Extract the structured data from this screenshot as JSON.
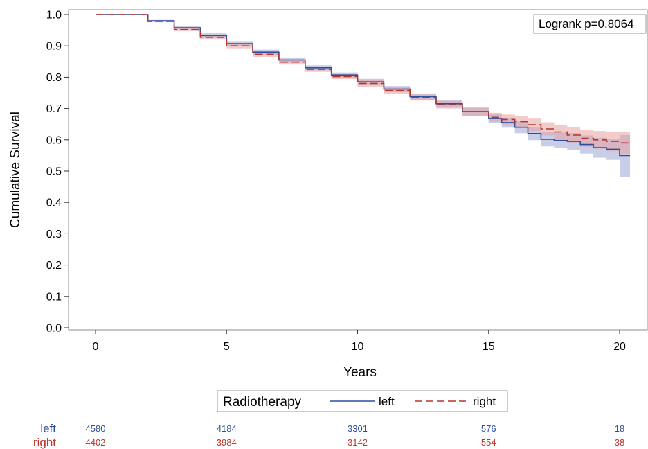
{
  "chart_data": {
    "type": "line",
    "subtype": "kaplan-meier",
    "ylabel": "Cumulative Survival",
    "xlabel": "Years",
    "ylim": [
      0,
      1.0
    ],
    "xlim": [
      -1,
      20.5
    ],
    "yticks": [
      0.0,
      0.1,
      0.2,
      0.3,
      0.4,
      0.5,
      0.6,
      0.7,
      0.8,
      0.9,
      1.0
    ],
    "ytick_labels": [
      "0.0",
      "0.1",
      "0.2",
      "0.3",
      "0.4",
      "0.5",
      "0.6",
      "0.7",
      "0.8",
      "0.9",
      "1.0"
    ],
    "xticks": [
      0,
      5,
      10,
      15,
      20
    ],
    "xtick_labels": [
      "0",
      "5",
      "10",
      "15",
      "20"
    ],
    "annotation": "Logrank p=0.8064",
    "legend": {
      "title": "Radiotherapy",
      "placement": "bottom-center",
      "entries": [
        "left",
        "right"
      ]
    },
    "series": [
      {
        "name": "left",
        "color": "#2e4f9e",
        "band_color": "#9aa6d6",
        "line_style": "solid",
        "points": [
          [
            0,
            1.0
          ],
          [
            1,
            1.0
          ],
          [
            2,
            0.98
          ],
          [
            3,
            0.958
          ],
          [
            4,
            0.933
          ],
          [
            5,
            0.907
          ],
          [
            6,
            0.88
          ],
          [
            7,
            0.855
          ],
          [
            8,
            0.83
          ],
          [
            9,
            0.807
          ],
          [
            10,
            0.785
          ],
          [
            11,
            0.762
          ],
          [
            12,
            0.738
          ],
          [
            13,
            0.715
          ],
          [
            14,
            0.69
          ],
          [
            15,
            0.668
          ],
          [
            15.5,
            0.655
          ],
          [
            16,
            0.64
          ],
          [
            16.5,
            0.62
          ],
          [
            17,
            0.602
          ],
          [
            17.5,
            0.598
          ],
          [
            18,
            0.595
          ],
          [
            18.5,
            0.585
          ],
          [
            19,
            0.575
          ],
          [
            19.5,
            0.57
          ],
          [
            20,
            0.55
          ],
          [
            20.4,
            0.55
          ]
        ],
        "ci_upper": [
          [
            0,
            1.0
          ],
          [
            1,
            1.0
          ],
          [
            2,
            0.983
          ],
          [
            3,
            0.963
          ],
          [
            4,
            0.94
          ],
          [
            5,
            0.915
          ],
          [
            6,
            0.888
          ],
          [
            7,
            0.863
          ],
          [
            8,
            0.838
          ],
          [
            9,
            0.815
          ],
          [
            10,
            0.795
          ],
          [
            11,
            0.772
          ],
          [
            12,
            0.748
          ],
          [
            13,
            0.727
          ],
          [
            14,
            0.703
          ],
          [
            15,
            0.682
          ],
          [
            15.5,
            0.671
          ],
          [
            16,
            0.659
          ],
          [
            16.5,
            0.641
          ],
          [
            17,
            0.625
          ],
          [
            17.5,
            0.623
          ],
          [
            18,
            0.622
          ],
          [
            18.5,
            0.614
          ],
          [
            19,
            0.607
          ],
          [
            19.5,
            0.604
          ],
          [
            20,
            0.615
          ],
          [
            20.4,
            0.615
          ]
        ],
        "ci_lower": [
          [
            0,
            1.0
          ],
          [
            1,
            1.0
          ],
          [
            2,
            0.977
          ],
          [
            3,
            0.953
          ],
          [
            4,
            0.926
          ],
          [
            5,
            0.899
          ],
          [
            6,
            0.872
          ],
          [
            7,
            0.847
          ],
          [
            8,
            0.822
          ],
          [
            9,
            0.799
          ],
          [
            10,
            0.775
          ],
          [
            11,
            0.752
          ],
          [
            12,
            0.728
          ],
          [
            13,
            0.703
          ],
          [
            14,
            0.677
          ],
          [
            15,
            0.654
          ],
          [
            15.5,
            0.639
          ],
          [
            16,
            0.621
          ],
          [
            16.5,
            0.599
          ],
          [
            17,
            0.579
          ],
          [
            17.5,
            0.573
          ],
          [
            18,
            0.568
          ],
          [
            18.5,
            0.556
          ],
          [
            19,
            0.543
          ],
          [
            19.5,
            0.536
          ],
          [
            20,
            0.482
          ],
          [
            20.4,
            0.482
          ]
        ]
      },
      {
        "name": "right",
        "color": "#b8342b",
        "band_color": "#e8a0a0",
        "line_style": "dashed",
        "points": [
          [
            0,
            1.0
          ],
          [
            1,
            1.0
          ],
          [
            2,
            0.978
          ],
          [
            3,
            0.952
          ],
          [
            4,
            0.927
          ],
          [
            5,
            0.9
          ],
          [
            6,
            0.873
          ],
          [
            7,
            0.848
          ],
          [
            8,
            0.825
          ],
          [
            9,
            0.802
          ],
          [
            10,
            0.78
          ],
          [
            11,
            0.757
          ],
          [
            12,
            0.735
          ],
          [
            13,
            0.712
          ],
          [
            14,
            0.69
          ],
          [
            15,
            0.672
          ],
          [
            15.5,
            0.665
          ],
          [
            16,
            0.658
          ],
          [
            16.5,
            0.648
          ],
          [
            17,
            0.635
          ],
          [
            17.5,
            0.625
          ],
          [
            18,
            0.615
          ],
          [
            18.5,
            0.605
          ],
          [
            19,
            0.6
          ],
          [
            19.5,
            0.595
          ],
          [
            20,
            0.59
          ],
          [
            20.4,
            0.59
          ]
        ],
        "ci_upper": [
          [
            0,
            1.0
          ],
          [
            1,
            1.0
          ],
          [
            2,
            0.981
          ],
          [
            3,
            0.957
          ],
          [
            4,
            0.934
          ],
          [
            5,
            0.908
          ],
          [
            6,
            0.881
          ],
          [
            7,
            0.856
          ],
          [
            8,
            0.833
          ],
          [
            9,
            0.81
          ],
          [
            10,
            0.79
          ],
          [
            11,
            0.767
          ],
          [
            12,
            0.745
          ],
          [
            13,
            0.724
          ],
          [
            14,
            0.703
          ],
          [
            15,
            0.686
          ],
          [
            15.5,
            0.681
          ],
          [
            16,
            0.677
          ],
          [
            16.5,
            0.668
          ],
          [
            17,
            0.656
          ],
          [
            17.5,
            0.647
          ],
          [
            18,
            0.64
          ],
          [
            18.5,
            0.632
          ],
          [
            19,
            0.628
          ],
          [
            19.5,
            0.626
          ],
          [
            20,
            0.625
          ],
          [
            20.4,
            0.625
          ]
        ],
        "ci_lower": [
          [
            0,
            1.0
          ],
          [
            1,
            1.0
          ],
          [
            2,
            0.975
          ],
          [
            3,
            0.947
          ],
          [
            4,
            0.92
          ],
          [
            5,
            0.892
          ],
          [
            6,
            0.865
          ],
          [
            7,
            0.84
          ],
          [
            8,
            0.817
          ],
          [
            9,
            0.794
          ],
          [
            10,
            0.77
          ],
          [
            11,
            0.747
          ],
          [
            12,
            0.725
          ],
          [
            13,
            0.7
          ],
          [
            14,
            0.677
          ],
          [
            15,
            0.658
          ],
          [
            15.5,
            0.649
          ],
          [
            16,
            0.639
          ],
          [
            16.5,
            0.628
          ],
          [
            17,
            0.614
          ],
          [
            17.5,
            0.603
          ],
          [
            18,
            0.59
          ],
          [
            18.5,
            0.578
          ],
          [
            19,
            0.572
          ],
          [
            19.5,
            0.564
          ],
          [
            20,
            0.555
          ],
          [
            20.4,
            0.555
          ]
        ]
      }
    ],
    "at_risk": {
      "times": [
        0,
        5,
        10,
        15,
        20
      ],
      "rows": [
        {
          "label": "left",
          "color": "#2e4f9e",
          "values": [
            "4580",
            "4184",
            "3301",
            "576",
            "18"
          ]
        },
        {
          "label": "right",
          "color": "#b8342b",
          "values": [
            "4402",
            "3984",
            "3142",
            "554",
            "38"
          ]
        }
      ]
    }
  }
}
